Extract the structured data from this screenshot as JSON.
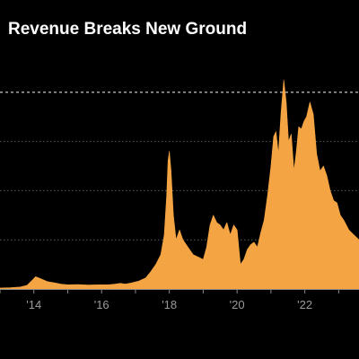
{
  "chart_data": {
    "type": "area",
    "title": "Revenue Breaks New Ground",
    "xlabel": "",
    "ylabel": "",
    "x_ticks": [
      "'14",
      "'16",
      "'18",
      "'20",
      "'22"
    ],
    "x_tick_values": [
      2014,
      2016,
      2018,
      2020,
      2022
    ],
    "xlim": [
      2013,
      2023.6
    ],
    "ylim": [
      0,
      1
    ],
    "grid": true,
    "gridlines_y": [
      0.2,
      0.4,
      0.6
    ],
    "reference_line": 0.8,
    "legend": "none",
    "color": "#F5A443",
    "series": [
      {
        "x": [
          2013.0,
          2013.3,
          2013.6,
          2013.8,
          2013.95,
          2014.05,
          2014.2,
          2014.4,
          2014.6,
          2014.8,
          2015.0,
          2015.3,
          2015.6,
          2015.9,
          2016.2,
          2016.4,
          2016.55,
          2016.7,
          2016.9,
          2017.1,
          2017.3,
          2017.45,
          2017.6,
          2017.75,
          2017.85,
          2017.92,
          2017.96,
          2018.0,
          2018.05,
          2018.12,
          2018.2,
          2018.3,
          2018.4,
          2018.55,
          2018.7,
          2018.85,
          2019.0,
          2019.1,
          2019.2,
          2019.3,
          2019.4,
          2019.5,
          2019.6,
          2019.7,
          2019.8,
          2019.9,
          2020.0,
          2020.1,
          2020.2,
          2020.3,
          2020.4,
          2020.5,
          2020.6,
          2020.7,
          2020.8,
          2020.9,
          2021.0,
          2021.08,
          2021.15,
          2021.22,
          2021.3,
          2021.38,
          2021.45,
          2021.52,
          2021.6,
          2021.68,
          2021.75,
          2021.82,
          2021.9,
          2021.97,
          2022.05,
          2022.15,
          2022.25,
          2022.35,
          2022.45,
          2022.55,
          2022.65,
          2022.75,
          2022.85,
          2022.95,
          2023.05,
          2023.15,
          2023.3,
          2023.45,
          2023.6
        ],
        "y": [
          0.004,
          0.005,
          0.008,
          0.015,
          0.035,
          0.05,
          0.042,
          0.03,
          0.025,
          0.02,
          0.017,
          0.018,
          0.016,
          0.017,
          0.017,
          0.02,
          0.023,
          0.02,
          0.025,
          0.032,
          0.045,
          0.07,
          0.1,
          0.14,
          0.22,
          0.38,
          0.52,
          0.56,
          0.48,
          0.3,
          0.2,
          0.24,
          0.2,
          0.17,
          0.14,
          0.13,
          0.12,
          0.17,
          0.26,
          0.3,
          0.27,
          0.26,
          0.24,
          0.27,
          0.22,
          0.26,
          0.24,
          0.1,
          0.12,
          0.16,
          0.18,
          0.19,
          0.17,
          0.23,
          0.28,
          0.38,
          0.5,
          0.62,
          0.64,
          0.55,
          0.72,
          0.85,
          0.76,
          0.6,
          0.63,
          0.48,
          0.56,
          0.66,
          0.65,
          0.68,
          0.7,
          0.76,
          0.71,
          0.55,
          0.48,
          0.5,
          0.46,
          0.4,
          0.36,
          0.35,
          0.3,
          0.28,
          0.24,
          0.22,
          0.2
        ]
      }
    ]
  }
}
